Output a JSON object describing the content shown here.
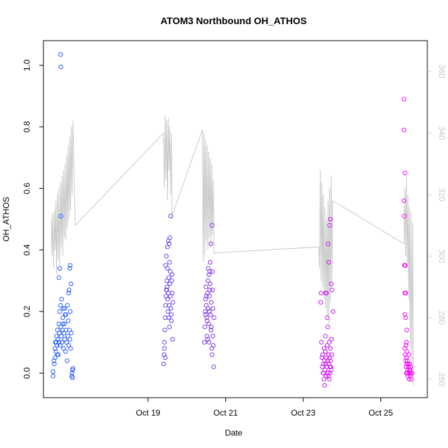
{
  "chart_data": {
    "type": "scatter",
    "title": "ATOM3 Northbound OH_ATHOS",
    "xlabel": "Date",
    "ylabel": "OH_ATHOS",
    "x_tick_labels": [
      "Oct 19",
      "Oct 21",
      "Oct 23",
      "Oct 25"
    ],
    "x_tick_values": [
      19,
      21,
      23,
      25
    ],
    "xlim": [
      16.3,
      26.2
    ],
    "ylim": [
      -0.08,
      1.08
    ],
    "y_ticks": [
      "0.0",
      "0.2",
      "0.4",
      "0.6",
      "0.8",
      "1.0"
    ],
    "y2lim": [
      254,
      370
    ],
    "y2_ticks": [
      "260",
      "280",
      "300",
      "320",
      "340",
      "360"
    ],
    "grid": false,
    "colors": {
      "start": "#1f5fff",
      "mid": "#8a2be2",
      "end": "#ff00ff",
      "line": "#c8c8c8"
    },
    "series": [
      {
        "values": [
          [
            16.55,
            -0.01
          ],
          [
            16.55,
            0.005
          ],
          [
            16.57,
            0.04
          ],
          [
            16.58,
            0.03
          ],
          [
            16.6,
            0.05
          ],
          [
            16.6,
            0.08
          ],
          [
            16.61,
            0.1
          ],
          [
            16.62,
            0.07
          ],
          [
            16.64,
            0.12
          ],
          [
            16.65,
            0.09
          ],
          [
            16.66,
            0.14
          ],
          [
            16.67,
            0.11
          ],
          [
            16.68,
            0.06
          ],
          [
            16.7,
            0.1
          ],
          [
            16.7,
            0.16
          ],
          [
            16.71,
            0.13
          ],
          [
            16.72,
            0.2
          ],
          [
            16.73,
            0.09
          ],
          [
            16.74,
            0.22
          ],
          [
            16.75,
            0.15
          ],
          [
            16.76,
            0.12
          ],
          [
            16.77,
            0.24
          ],
          [
            16.78,
            0.1
          ],
          [
            16.79,
            0.14
          ],
          [
            16.8,
            0.18
          ],
          [
            16.81,
            0.21
          ],
          [
            16.82,
            0.08
          ],
          [
            16.83,
            0.13
          ],
          [
            16.84,
            0.16
          ],
          [
            16.85,
            0.11
          ],
          [
            16.86,
            0.19
          ],
          [
            16.87,
            0.07
          ],
          [
            16.88,
            0.14
          ],
          [
            16.9,
            0.1
          ],
          [
            16.91,
            0.04
          ],
          [
            16.92,
            0.22
          ],
          [
            16.93,
            0.12
          ],
          [
            16.94,
            0.17
          ],
          [
            16.95,
            0.09
          ],
          [
            16.96,
            0.27
          ],
          [
            16.97,
            0.14
          ],
          [
            16.98,
            0.11
          ],
          [
            16.99,
            0.2
          ],
          [
            17.0,
            0.08
          ],
          [
            17.01,
            0.29
          ],
          [
            17.02,
            0.13
          ],
          [
            17.03,
            -0.01
          ],
          [
            17.04,
            0.0
          ],
          [
            17.05,
            0.01
          ],
          [
            17.05,
            -0.015
          ],
          [
            17.06,
            0.015
          ],
          [
            16.72,
            0.34
          ],
          [
            16.7,
            0.31
          ],
          [
            16.98,
            0.34
          ],
          [
            16.99,
            0.35
          ],
          [
            16.95,
            0.26
          ],
          [
            16.74,
            1.035
          ],
          [
            16.75,
            0.995
          ],
          [
            16.75,
            0.51
          ],
          [
            16.8,
            0.16
          ],
          [
            16.85,
            0.21
          ],
          [
            16.66,
            0.06
          ],
          [
            16.63,
            0.1
          ],
          [
            16.88,
            0.19
          ]
        ]
      },
      {
        "values": [
          [
            19.4,
            0.03
          ],
          [
            19.41,
            0.06
          ],
          [
            19.42,
            0.1
          ],
          [
            19.43,
            0.14
          ],
          [
            19.44,
            0.18
          ],
          [
            19.45,
            0.22
          ],
          [
            19.46,
            0.25
          ],
          [
            19.47,
            0.27
          ],
          [
            19.48,
            0.3
          ],
          [
            19.49,
            0.28
          ],
          [
            19.5,
            0.24
          ],
          [
            19.51,
            0.2
          ],
          [
            19.52,
            0.26
          ],
          [
            19.53,
            0.31
          ],
          [
            19.54,
            0.22
          ],
          [
            19.55,
            0.15
          ],
          [
            19.56,
            0.29
          ],
          [
            19.57,
            0.33
          ],
          [
            19.58,
            0.25
          ],
          [
            19.59,
            0.21
          ],
          [
            19.6,
            0.17
          ],
          [
            19.61,
            0.3
          ],
          [
            19.62,
            0.26
          ],
          [
            19.63,
            0.11
          ],
          [
            19.64,
            0.23
          ],
          [
            19.5,
            0.41
          ],
          [
            19.52,
            0.43
          ],
          [
            19.54,
            0.42
          ],
          [
            19.56,
            0.44
          ],
          [
            19.45,
            0.35
          ],
          [
            19.47,
            0.38
          ],
          [
            19.58,
            0.51
          ],
          [
            19.42,
            0.08
          ],
          [
            19.44,
            0.05
          ],
          [
            19.6,
            0.19
          ],
          [
            19.62,
            0.32
          ],
          [
            19.48,
            0.27
          ],
          [
            19.5,
            0.34
          ],
          [
            19.55,
            0.36
          ],
          [
            19.53,
            0.18
          ]
        ]
      },
      {
        "values": [
          [
            20.45,
            0.1
          ],
          [
            20.46,
            0.15
          ],
          [
            20.47,
            0.2
          ],
          [
            20.48,
            0.24
          ],
          [
            20.49,
            0.28
          ],
          [
            20.5,
            0.22
          ],
          [
            20.51,
            0.18
          ],
          [
            20.52,
            0.12
          ],
          [
            20.53,
            0.26
          ],
          [
            20.54,
            0.3
          ],
          [
            20.55,
            0.21
          ],
          [
            20.56,
            0.16
          ],
          [
            20.57,
            0.1
          ],
          [
            20.58,
            0.25
          ],
          [
            20.59,
            0.33
          ],
          [
            20.6,
            0.29
          ],
          [
            20.61,
            0.19
          ],
          [
            20.62,
            0.14
          ],
          [
            20.63,
            0.23
          ],
          [
            20.64,
            0.08
          ],
          [
            20.65,
            0.06
          ],
          [
            20.66,
            0.27
          ],
          [
            20.67,
            0.12
          ],
          [
            20.68,
            0.09
          ],
          [
            20.69,
            0.02
          ],
          [
            20.7,
            0.18
          ],
          [
            20.55,
            0.34
          ],
          [
            20.57,
            0.32
          ],
          [
            20.6,
            0.36
          ],
          [
            20.62,
            0.42
          ],
          [
            20.65,
            0.48
          ],
          [
            20.66,
            0.33
          ],
          [
            20.5,
            0.25
          ],
          [
            20.52,
            0.17
          ],
          [
            20.58,
            0.2
          ],
          [
            20.63,
            0.15
          ],
          [
            20.67,
            0.21
          ],
          [
            20.54,
            0.11
          ],
          [
            20.59,
            0.27
          ],
          [
            20.48,
            0.19
          ]
        ]
      },
      {
        "values": [
          [
            23.45,
            0.23
          ],
          [
            23.46,
            0.26
          ],
          [
            23.47,
            0.1
          ],
          [
            23.48,
            0.05
          ],
          [
            23.49,
            0.02
          ],
          [
            23.5,
            0.06
          ],
          [
            23.51,
            0.0
          ],
          [
            23.52,
            0.03
          ],
          [
            23.53,
            -0.02
          ],
          [
            23.54,
            0.08
          ],
          [
            23.55,
            0.04
          ],
          [
            23.56,
            0.01
          ],
          [
            23.57,
            0.07
          ],
          [
            23.58,
            0.03
          ],
          [
            23.59,
            -0.01
          ],
          [
            23.6,
            0.05
          ],
          [
            23.61,
            0.02
          ],
          [
            23.62,
            0.09
          ],
          [
            23.63,
            0.04
          ],
          [
            23.64,
            0.0
          ],
          [
            23.65,
            0.06
          ],
          [
            23.66,
            0.03
          ],
          [
            23.67,
            -0.02
          ],
          [
            23.68,
            0.05
          ],
          [
            23.69,
            0.02
          ],
          [
            23.7,
            0.08
          ],
          [
            23.71,
            0.04
          ],
          [
            23.72,
            0.01
          ],
          [
            23.73,
            0.11
          ],
          [
            23.74,
            0.06
          ],
          [
            23.58,
            0.26
          ],
          [
            23.6,
            0.26
          ],
          [
            23.62,
            0.18
          ],
          [
            23.64,
            0.42
          ],
          [
            23.66,
            0.36
          ],
          [
            23.68,
            0.48
          ],
          [
            23.7,
            0.5
          ],
          [
            23.72,
            0.29
          ],
          [
            23.74,
            0.27
          ],
          [
            23.77,
            0.2
          ],
          [
            23.55,
            -0.04
          ],
          [
            23.57,
            0.12
          ],
          [
            23.63,
            0.15
          ],
          [
            23.67,
            0.1
          ],
          [
            23.52,
            0.0
          ],
          [
            23.65,
            -0.01
          ],
          [
            23.69,
            0.0
          ],
          [
            23.71,
            0.02
          ]
        ]
      },
      {
        "values": [
          [
            25.6,
            0.89
          ],
          [
            25.6,
            0.79
          ],
          [
            25.62,
            0.65
          ],
          [
            25.6,
            0.56
          ],
          [
            25.61,
            0.51
          ],
          [
            25.61,
            0.35
          ],
          [
            25.63,
            0.35
          ],
          [
            25.62,
            0.26
          ],
          [
            25.64,
            0.26
          ],
          [
            25.64,
            0.18
          ],
          [
            25.62,
            0.19
          ],
          [
            25.66,
            0.1
          ],
          [
            25.67,
            0.14
          ],
          [
            25.62,
            0.08
          ],
          [
            25.63,
            0.06
          ],
          [
            25.64,
            0.04
          ],
          [
            25.65,
            0.02
          ],
          [
            25.66,
            0.05
          ],
          [
            25.67,
            0.03
          ],
          [
            25.68,
            0.0
          ],
          [
            25.69,
            0.01
          ],
          [
            25.7,
            -0.01
          ],
          [
            25.71,
            0.02
          ],
          [
            25.72,
            0.0
          ],
          [
            25.73,
            -0.02
          ],
          [
            25.74,
            0.01
          ],
          [
            25.75,
            0.0
          ],
          [
            25.76,
            -0.01
          ],
          [
            25.77,
            0.02
          ],
          [
            25.78,
            0.0
          ],
          [
            25.79,
            -0.02
          ],
          [
            25.7,
            0.03
          ],
          [
            25.72,
            0.06
          ],
          [
            25.65,
            0.09
          ],
          [
            25.68,
            0.07
          ],
          [
            25.74,
            0.03
          ],
          [
            25.76,
            0.01
          ],
          [
            25.8,
            0.0
          ],
          [
            25.66,
            0.0
          ],
          [
            25.69,
            0.04
          ]
        ]
      }
    ],
    "line_series": {
      "axis": "right",
      "points": [
        [
          16.5,
          312
        ],
        [
          16.52,
          300
        ],
        [
          16.54,
          314
        ],
        [
          16.56,
          296
        ],
        [
          16.58,
          315
        ],
        [
          16.6,
          302
        ],
        [
          16.62,
          318
        ],
        [
          16.64,
          294
        ],
        [
          16.66,
          320
        ],
        [
          16.68,
          299
        ],
        [
          16.7,
          322
        ],
        [
          16.72,
          297
        ],
        [
          16.74,
          324
        ],
        [
          16.76,
          303
        ],
        [
          16.78,
          326
        ],
        [
          16.8,
          300
        ],
        [
          16.82,
          328
        ],
        [
          16.84,
          306
        ],
        [
          16.86,
          330
        ],
        [
          16.88,
          305
        ],
        [
          16.9,
          333
        ],
        [
          16.92,
          309
        ],
        [
          16.94,
          336
        ],
        [
          16.96,
          312
        ],
        [
          16.98,
          339
        ],
        [
          17.0,
          315
        ],
        [
          17.02,
          342
        ],
        [
          17.04,
          320
        ],
        [
          17.06,
          344
        ],
        [
          17.12,
          310
        ],
        [
          19.4,
          340
        ],
        [
          19.42,
          322
        ],
        [
          19.44,
          346
        ],
        [
          19.46,
          325
        ],
        [
          19.48,
          344
        ],
        [
          19.5,
          318
        ],
        [
          19.52,
          345
        ],
        [
          19.54,
          328
        ],
        [
          19.56,
          342
        ],
        [
          19.58,
          320
        ],
        [
          19.6,
          340
        ],
        [
          19.62,
          312
        ],
        [
          19.64,
          314
        ],
        [
          20.4,
          341
        ],
        [
          20.42,
          298
        ],
        [
          20.44,
          340
        ],
        [
          20.46,
          300
        ],
        [
          20.48,
          338
        ],
        [
          20.5,
          305
        ],
        [
          20.52,
          336
        ],
        [
          20.54,
          302
        ],
        [
          20.56,
          334
        ],
        [
          20.58,
          306
        ],
        [
          20.6,
          332
        ],
        [
          20.62,
          303
        ],
        [
          20.64,
          330
        ],
        [
          20.66,
          307
        ],
        [
          20.68,
          325
        ],
        [
          20.7,
          301
        ],
        [
          23.4,
          303
        ],
        [
          23.42,
          296
        ],
        [
          23.44,
          328
        ],
        [
          23.46,
          292
        ],
        [
          23.48,
          324
        ],
        [
          23.5,
          290
        ],
        [
          23.52,
          320
        ],
        [
          23.54,
          286
        ],
        [
          23.56,
          316
        ],
        [
          23.58,
          283
        ],
        [
          23.6,
          312
        ],
        [
          23.62,
          280
        ],
        [
          23.64,
          318
        ],
        [
          23.66,
          278
        ],
        [
          23.68,
          322
        ],
        [
          23.7,
          285
        ],
        [
          23.72,
          326
        ],
        [
          23.74,
          290
        ],
        [
          23.76,
          318
        ],
        [
          25.6,
          304
        ],
        [
          25.62,
          322
        ],
        [
          25.64,
          300
        ],
        [
          25.66,
          326
        ],
        [
          25.68,
          296
        ],
        [
          25.7,
          320
        ],
        [
          25.72,
          286
        ],
        [
          25.74,
          316
        ],
        [
          25.76,
          270
        ],
        [
          25.78,
          314
        ],
        [
          25.8,
          262
        ],
        [
          25.82,
          311
        ],
        [
          25.84,
          258
        ]
      ]
    }
  }
}
